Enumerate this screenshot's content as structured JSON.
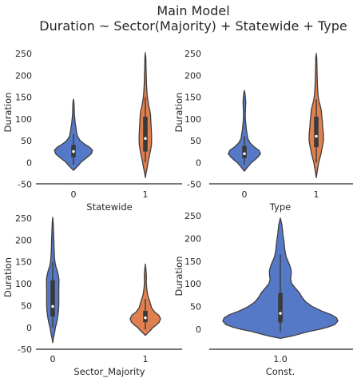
{
  "title": [
    "Main Model",
    "Duration ~ Sector(Majority) + Statewide + Type"
  ],
  "colors": {
    "blue": "#4C72B0",
    "blue_fill": "#5579C6",
    "orange": "#E0804F",
    "edge": "#3d3d3d",
    "axis": "#262626"
  },
  "chart_data": [
    {
      "type": "violin",
      "xlabel": "Statewide",
      "ylabel": "Duration",
      "categories": [
        "0",
        "1"
      ],
      "yticks": [
        -50,
        0,
        50,
        100,
        150,
        200,
        250
      ],
      "ylim": [
        -50,
        255
      ],
      "violins": [
        {
          "category": "0",
          "color": "#5579C6",
          "profile": [
            [
              -18,
              0.0
            ],
            [
              -12,
              0.12
            ],
            [
              -5,
              0.25
            ],
            [
              0,
              0.33
            ],
            [
              5,
              0.45
            ],
            [
              12,
              0.62
            ],
            [
              20,
              0.8
            ],
            [
              28,
              0.85
            ],
            [
              35,
              0.72
            ],
            [
              42,
              0.5
            ],
            [
              50,
              0.3
            ],
            [
              60,
              0.18
            ],
            [
              70,
              0.14
            ],
            [
              80,
              0.11
            ],
            [
              90,
              0.08
            ],
            [
              100,
              0.06
            ],
            [
              110,
              0.04
            ],
            [
              120,
              0.035
            ],
            [
              130,
              0.03
            ],
            [
              138,
              0.02
            ],
            [
              145,
              0.0
            ]
          ],
          "q1": 12,
          "median": 25,
          "q3": 40,
          "whisker_low": -5,
          "whisker_high": 65
        },
        {
          "category": "1",
          "color": "#E0804F",
          "profile": [
            [
              -35,
              0.0
            ],
            [
              -25,
              0.03
            ],
            [
              -15,
              0.07
            ],
            [
              0,
              0.12
            ],
            [
              10,
              0.16
            ],
            [
              20,
              0.2
            ],
            [
              30,
              0.24
            ],
            [
              40,
              0.27
            ],
            [
              50,
              0.28
            ],
            [
              60,
              0.28
            ],
            [
              70,
              0.27
            ],
            [
              80,
              0.26
            ],
            [
              90,
              0.25
            ],
            [
              100,
              0.24
            ],
            [
              110,
              0.23
            ],
            [
              120,
              0.2
            ],
            [
              130,
              0.15
            ],
            [
              140,
              0.12
            ],
            [
              150,
              0.09
            ],
            [
              160,
              0.07
            ],
            [
              180,
              0.05
            ],
            [
              200,
              0.04
            ],
            [
              220,
              0.03
            ],
            [
              240,
              0.02
            ],
            [
              252,
              0.0
            ]
          ],
          "q1": 25,
          "median": 55,
          "q3": 105,
          "whisker_low": 0,
          "whisker_high": 150
        }
      ]
    },
    {
      "type": "violin",
      "xlabel": "Type",
      "ylabel": "Duration",
      "categories": [
        "0",
        "1"
      ],
      "yticks": [
        -50,
        0,
        50,
        100,
        150,
        200,
        250
      ],
      "ylim": [
        -50,
        255
      ],
      "violins": [
        {
          "category": "0",
          "color": "#5579C6",
          "profile": [
            [
              -20,
              0.0
            ],
            [
              -12,
              0.12
            ],
            [
              -5,
              0.24
            ],
            [
              0,
              0.32
            ],
            [
              5,
              0.45
            ],
            [
              12,
              0.6
            ],
            [
              20,
              0.72
            ],
            [
              28,
              0.65
            ],
            [
              35,
              0.45
            ],
            [
              45,
              0.25
            ],
            [
              55,
              0.15
            ],
            [
              65,
              0.12
            ],
            [
              75,
              0.09
            ],
            [
              85,
              0.07
            ],
            [
              95,
              0.05
            ],
            [
              110,
              0.04
            ],
            [
              125,
              0.05
            ],
            [
              140,
              0.06
            ],
            [
              152,
              0.04
            ],
            [
              160,
              0.02
            ],
            [
              165,
              0.0
            ]
          ],
          "q1": 10,
          "median": 20,
          "q3": 38,
          "whisker_low": -5,
          "whisker_high": 60
        },
        {
          "category": "1",
          "color": "#E0804F",
          "profile": [
            [
              -35,
              0.0
            ],
            [
              -25,
              0.03
            ],
            [
              -15,
              0.06
            ],
            [
              0,
              0.11
            ],
            [
              10,
              0.16
            ],
            [
              20,
              0.21
            ],
            [
              30,
              0.25
            ],
            [
              40,
              0.29
            ],
            [
              50,
              0.32
            ],
            [
              60,
              0.32
            ],
            [
              70,
              0.31
            ],
            [
              80,
              0.29
            ],
            [
              90,
              0.28
            ],
            [
              100,
              0.26
            ],
            [
              110,
              0.24
            ],
            [
              120,
              0.22
            ],
            [
              130,
              0.18
            ],
            [
              140,
              0.13
            ],
            [
              150,
              0.09
            ],
            [
              160,
              0.07
            ],
            [
              180,
              0.05
            ],
            [
              200,
              0.04
            ],
            [
              220,
              0.03
            ],
            [
              240,
              0.02
            ],
            [
              250,
              0.0
            ]
          ],
          "q1": 35,
          "median": 60,
          "q3": 105,
          "whisker_low": 0,
          "whisker_high": 145
        }
      ]
    },
    {
      "type": "violin",
      "xlabel": "Sector_Majority",
      "ylabel": "Duration",
      "categories": [
        "0",
        "1"
      ],
      "yticks": [
        -50,
        0,
        50,
        100,
        150,
        200,
        250
      ],
      "ylim": [
        -50,
        255
      ],
      "violins": [
        {
          "category": "0",
          "color": "#5579C6",
          "profile": [
            [
              -35,
              0.0
            ],
            [
              -25,
              0.03
            ],
            [
              -15,
              0.07
            ],
            [
              0,
              0.12
            ],
            [
              10,
              0.17
            ],
            [
              20,
              0.21
            ],
            [
              30,
              0.24
            ],
            [
              40,
              0.26
            ],
            [
              50,
              0.27
            ],
            [
              60,
              0.27
            ],
            [
              70,
              0.27
            ],
            [
              80,
              0.27
            ],
            [
              90,
              0.27
            ],
            [
              100,
              0.28
            ],
            [
              110,
              0.28
            ],
            [
              120,
              0.25
            ],
            [
              130,
              0.2
            ],
            [
              140,
              0.14
            ],
            [
              150,
              0.1
            ],
            [
              160,
              0.08
            ],
            [
              180,
              0.06
            ],
            [
              200,
              0.05
            ],
            [
              220,
              0.035
            ],
            [
              240,
              0.02
            ],
            [
              252,
              0.0
            ]
          ],
          "q1": 25,
          "median": 48,
          "q3": 108,
          "whisker_low": 0,
          "whisker_high": 150
        },
        {
          "category": "1",
          "color": "#E0804F",
          "profile": [
            [
              -18,
              0.0
            ],
            [
              -12,
              0.12
            ],
            [
              -5,
              0.26
            ],
            [
              0,
              0.34
            ],
            [
              5,
              0.48
            ],
            [
              12,
              0.62
            ],
            [
              20,
              0.68
            ],
            [
              28,
              0.6
            ],
            [
              35,
              0.42
            ],
            [
              45,
              0.28
            ],
            [
              55,
              0.22
            ],
            [
              65,
              0.16
            ],
            [
              75,
              0.1
            ],
            [
              85,
              0.07
            ],
            [
              95,
              0.05
            ],
            [
              105,
              0.04
            ],
            [
              115,
              0.05
            ],
            [
              125,
              0.04
            ],
            [
              135,
              0.02
            ],
            [
              145,
              0.0
            ]
          ],
          "q1": 12,
          "median": 22,
          "q3": 38,
          "whisker_low": -5,
          "whisker_high": 65
        }
      ]
    },
    {
      "type": "violin",
      "xlabel": "Const.",
      "ylabel": "Duration",
      "categories": [
        "1.0"
      ],
      "yticks": [
        0,
        50,
        100,
        150,
        200,
        250
      ],
      "ylim": [
        -30,
        255
      ],
      "violins": [
        {
          "category": "1.0",
          "color": "#5579C6",
          "profile": [
            [
              -20,
              0.0
            ],
            [
              -15,
              0.18
            ],
            [
              -5,
              0.45
            ],
            [
              0,
              0.62
            ],
            [
              5,
              0.75
            ],
            [
              10,
              0.85
            ],
            [
              18,
              0.9
            ],
            [
              25,
              0.88
            ],
            [
              32,
              0.8
            ],
            [
              40,
              0.65
            ],
            [
              50,
              0.5
            ],
            [
              60,
              0.4
            ],
            [
              70,
              0.34
            ],
            [
              80,
              0.3
            ],
            [
              90,
              0.24
            ],
            [
              100,
              0.18
            ],
            [
              110,
              0.16
            ],
            [
              120,
              0.17
            ],
            [
              130,
              0.17
            ],
            [
              140,
              0.15
            ],
            [
              150,
              0.12
            ],
            [
              160,
              0.09
            ],
            [
              175,
              0.07
            ],
            [
              190,
              0.06
            ],
            [
              210,
              0.04
            ],
            [
              230,
              0.025
            ],
            [
              245,
              0.0
            ]
          ],
          "q1": 15,
          "median": 35,
          "q3": 80,
          "whisker_low": -5,
          "whisker_high": 165
        }
      ]
    }
  ]
}
